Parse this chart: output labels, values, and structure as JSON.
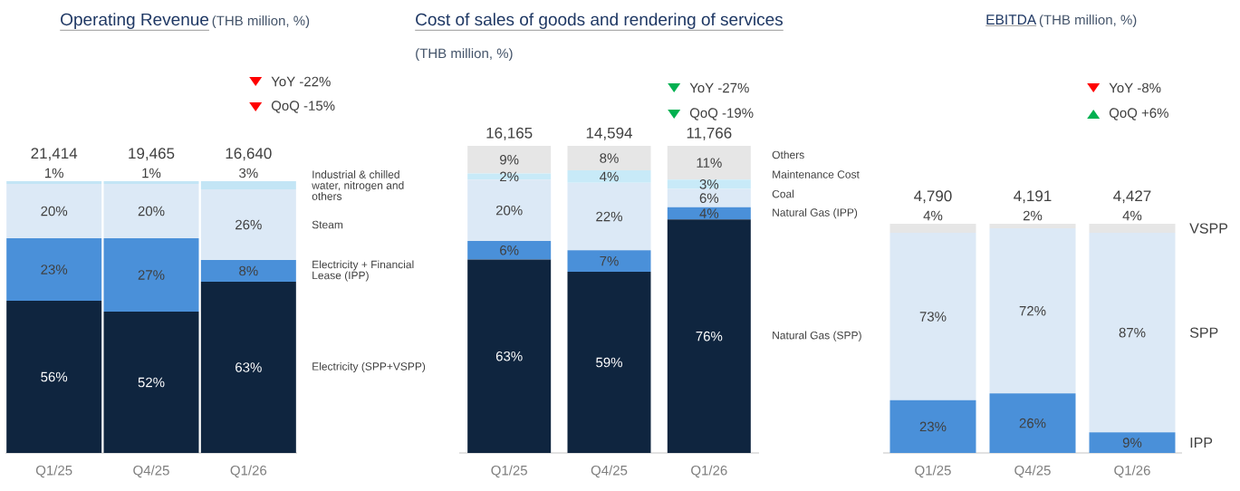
{
  "chart_data": [
    {
      "type": "bar",
      "stacked": true,
      "title": "Operating Revenue",
      "subtitle": "(THB million, %)",
      "categories": [
        "Q1/25",
        "Q4/25",
        "Q1/26"
      ],
      "series": [
        {
          "name": "Electricity (SPP+VSPP)",
          "color": "#0f253f",
          "values": [
            56,
            52,
            63
          ],
          "value_labels": [
            "56%",
            "52%",
            "63%"
          ]
        },
        {
          "name": "Electricity + Financial Lease (IPP)",
          "color": "#4a90d9",
          "values": [
            23,
            27,
            8
          ],
          "value_labels": [
            "23%",
            "27%",
            "8%"
          ]
        },
        {
          "name": "Steam",
          "color": "#dce9f6",
          "values": [
            20,
            20,
            26
          ],
          "value_labels": [
            "20%",
            "20%",
            "26%"
          ]
        },
        {
          "name": "Industrial & chilled water, nitrogen and others",
          "color": "#c3e5f5",
          "values": [
            1,
            1,
            3
          ],
          "value_labels": [
            "1%",
            "1%",
            "3%"
          ]
        }
      ],
      "annotations": [
        "YoY -22%",
        "QoQ -15%",
        {
          "text": "21,414",
          "x": "Q1/25",
          "y": 100
        },
        {
          "text": "19,465",
          "x": "Q4/25",
          "y": 100
        },
        {
          "text": "16,640",
          "x": "Q1/26",
          "y": 100
        }
      ]
    },
    {
      "type": "bar",
      "stacked": true,
      "title": "Cost of sales of goods and rendering of services",
      "subtitle": "(THB million, %)",
      "categories": [
        "Q1/25",
        "Q4/25",
        "Q1/26"
      ],
      "series": [
        {
          "name": "Natural Gas (SPP)",
          "color": "#0f253f",
          "values": [
            63,
            59,
            76
          ],
          "value_labels": [
            "63%",
            "59%",
            "76%"
          ]
        },
        {
          "name": "Natural Gas (IPP)",
          "color": "#4a90d9",
          "values": [
            6,
            7,
            4
          ],
          "value_labels": [
            "6%",
            "7%",
            "4%"
          ]
        },
        {
          "name": "Coal",
          "color": "#dce9f6",
          "values": [
            20,
            22,
            6
          ],
          "value_labels": [
            "20%",
            "22%",
            "6%"
          ]
        },
        {
          "name": "Maintenance Cost",
          "color": "#c8eaf8",
          "values": [
            2,
            4,
            3
          ],
          "value_labels": [
            "2%",
            "4%",
            "3%"
          ]
        },
        {
          "name": "Others",
          "color": "#e6e6e6",
          "values": [
            9,
            8,
            11
          ],
          "value_labels": [
            "9%",
            "8%",
            "11%"
          ]
        }
      ],
      "annotations": [
        "YoY -27%",
        "QoQ -19%",
        {
          "text": "16,165",
          "x": "Q1/25",
          "y": 100
        },
        {
          "text": "14,594",
          "x": "Q4/25",
          "y": 100
        },
        {
          "text": "11,766",
          "x": "Q1/26",
          "y": 100
        }
      ]
    },
    {
      "type": "bar",
      "stacked": true,
      "title": "EBITDA",
      "subtitle": "(THB million, %)",
      "categories": [
        "Q1/25",
        "Q4/25",
        "Q1/26"
      ],
      "series": [
        {
          "name": "IPP",
          "color": "#4a90d9",
          "values": [
            23,
            26,
            9
          ],
          "value_labels": [
            "23%",
            "26%",
            "9%"
          ]
        },
        {
          "name": "SPP",
          "color": "#dce9f6",
          "values": [
            73,
            72,
            87
          ],
          "value_labels": [
            "73%",
            "72%",
            "87%"
          ]
        },
        {
          "name": "VSPP",
          "color": "#e6e6e6",
          "values": [
            4,
            2,
            4
          ],
          "value_labels": [
            "4%",
            "2%",
            "4%"
          ]
        }
      ],
      "annotations": [
        "YoY -8%",
        "QoQ +6%",
        {
          "text": "4,790",
          "x": "Q1/25",
          "y": 100
        },
        {
          "text": "4,191",
          "x": "Q4/25",
          "y": 100
        },
        {
          "text": "4,427",
          "x": "Q1/26",
          "y": 100
        }
      ]
    }
  ]
}
